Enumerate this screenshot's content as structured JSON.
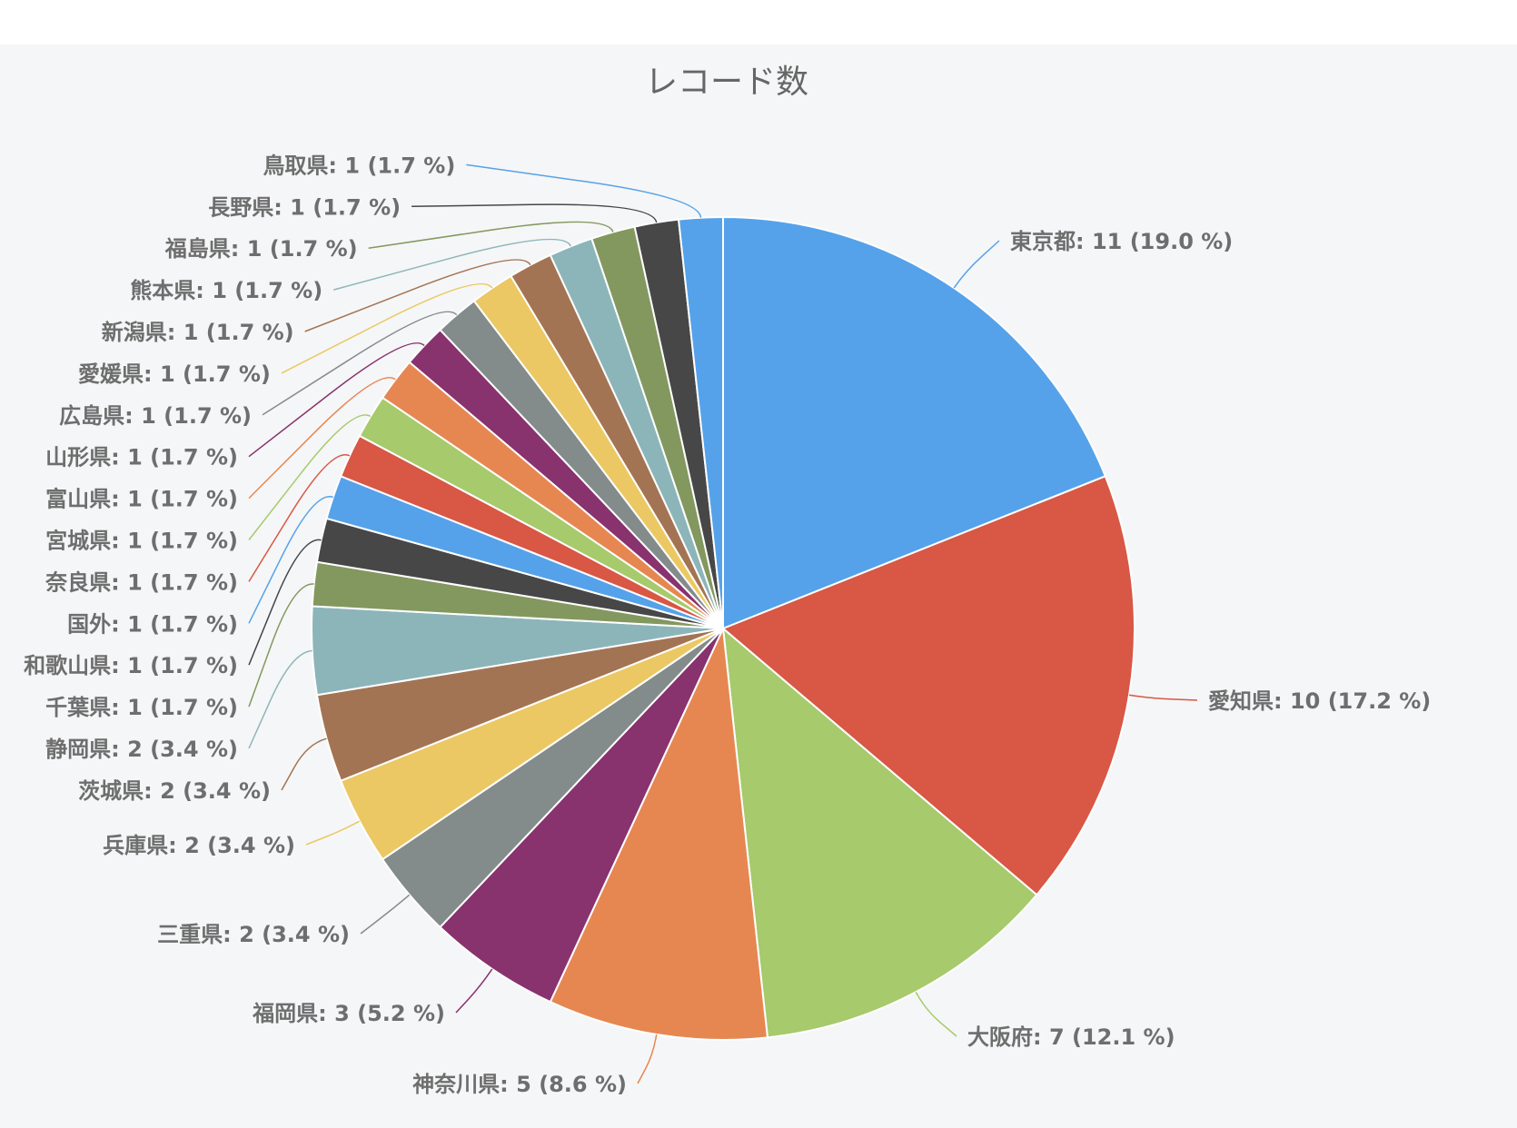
{
  "chart_data": {
    "type": "pie",
    "title": "レコード数",
    "slices": [
      {
        "name": "東京都",
        "value": 11,
        "percent": "19.0",
        "color": "#55a2ea"
      },
      {
        "name": "愛知県",
        "value": 10,
        "percent": "17.2",
        "color": "#d85745"
      },
      {
        "name": "大阪府",
        "value": 7,
        "percent": "12.1",
        "color": "#a6ca6c"
      },
      {
        "name": "神奈川県",
        "value": 5,
        "percent": "8.6",
        "color": "#e68752"
      },
      {
        "name": "福岡県",
        "value": 3,
        "percent": "5.2",
        "color": "#88326e"
      },
      {
        "name": "三重県",
        "value": 2,
        "percent": "3.4",
        "color": "#838b8b"
      },
      {
        "name": "兵庫県",
        "value": 2,
        "percent": "3.4",
        "color": "#ebc863"
      },
      {
        "name": "茨城県",
        "value": 2,
        "percent": "3.4",
        "color": "#a37453"
      },
      {
        "name": "静岡県",
        "value": 2,
        "percent": "3.4",
        "color": "#8cb5ba"
      },
      {
        "name": "千葉県",
        "value": 1,
        "percent": "1.7",
        "color": "#83985e"
      },
      {
        "name": "和歌山県",
        "value": 1,
        "percent": "1.7",
        "color": "#474747"
      },
      {
        "name": "国外",
        "value": 1,
        "percent": "1.7",
        "color": "#55a2ea"
      },
      {
        "name": "奈良県",
        "value": 1,
        "percent": "1.7",
        "color": "#d85745"
      },
      {
        "name": "宮城県",
        "value": 1,
        "percent": "1.7",
        "color": "#a6ca6c"
      },
      {
        "name": "富山県",
        "value": 1,
        "percent": "1.7",
        "color": "#e68752"
      },
      {
        "name": "山形県",
        "value": 1,
        "percent": "1.7",
        "color": "#88326e"
      },
      {
        "name": "広島県",
        "value": 1,
        "percent": "1.7",
        "color": "#838b8b"
      },
      {
        "name": "愛媛県",
        "value": 1,
        "percent": "1.7",
        "color": "#ebc863"
      },
      {
        "name": "新潟県",
        "value": 1,
        "percent": "1.7",
        "color": "#a37453"
      },
      {
        "name": "熊本県",
        "value": 1,
        "percent": "1.7",
        "color": "#8cb5ba"
      },
      {
        "name": "福島県",
        "value": 1,
        "percent": "1.7",
        "color": "#83985e"
      },
      {
        "name": "長野県",
        "value": 1,
        "percent": "1.7",
        "color": "#474747"
      },
      {
        "name": "鳥取県",
        "value": 1,
        "percent": "1.7",
        "color": "#55a2ea"
      }
    ]
  }
}
